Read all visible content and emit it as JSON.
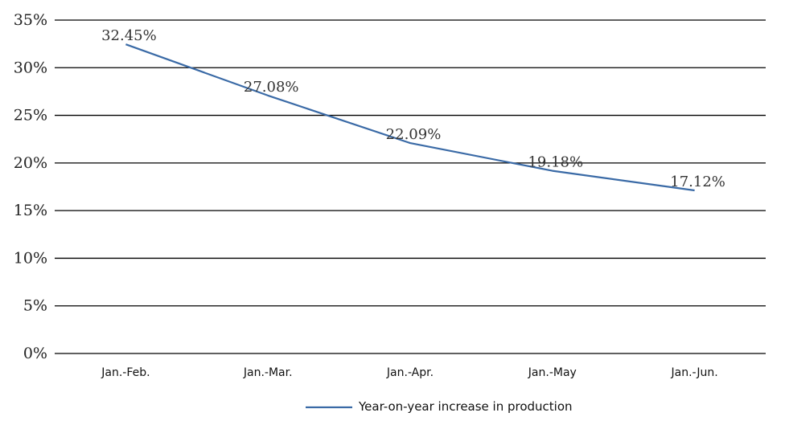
{
  "chart_data": {
    "type": "line",
    "categories": [
      "Jan.-Feb.",
      "Jan.-Mar.",
      "Jan.-Apr.",
      "Jan.-May",
      "Jan.-Jun."
    ],
    "series": [
      {
        "name": "Year-on-year increase in production",
        "values": [
          32.45,
          27.08,
          22.09,
          19.18,
          17.12
        ],
        "data_labels": [
          "32.45%",
          "27.08%",
          "22.09%",
          "19.18%",
          "17.12%"
        ],
        "color": "#3a6aa6"
      }
    ],
    "ylim": [
      0,
      35
    ],
    "yticks": [
      0,
      5,
      10,
      15,
      20,
      25,
      30,
      35
    ],
    "ytick_labels": [
      "0%",
      "5%",
      "10%",
      "15%",
      "20%",
      "25%",
      "30%",
      "35%"
    ],
    "grid": true,
    "legend_position": "bottom"
  }
}
